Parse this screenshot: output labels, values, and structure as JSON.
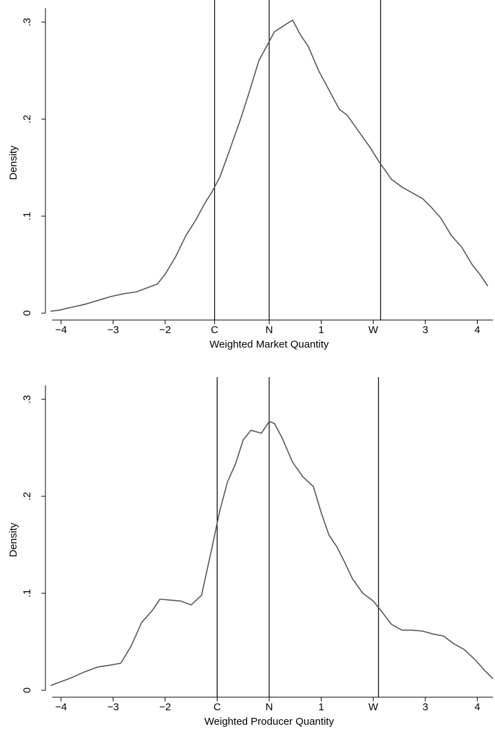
{
  "chart_data": [
    {
      "type": "line",
      "xlabel": "Weighted Market Quantity",
      "ylabel": "Density",
      "xlim": [
        -4.3,
        4.3
      ],
      "ylim": [
        0,
        0.31
      ],
      "x_ticks": [
        {
          "value": -4,
          "label": "−4"
        },
        {
          "value": -3,
          "label": "−3"
        },
        {
          "value": -2,
          "label": "−2"
        },
        {
          "value": -1.05,
          "label": "C"
        },
        {
          "value": 0,
          "label": "N"
        },
        {
          "value": 1,
          "label": "1"
        },
        {
          "value": 2,
          "label": "W"
        },
        {
          "value": 3,
          "label": "3"
        },
        {
          "value": 4,
          "label": "4"
        }
      ],
      "y_ticks": [
        {
          "value": 0,
          "label": "0"
        },
        {
          "value": 0.1,
          "label": ".1"
        },
        {
          "value": 0.2,
          "label": ".2"
        },
        {
          "value": 0.3,
          "label": ".3"
        }
      ],
      "reference_lines": [
        -1.05,
        0,
        2.14
      ],
      "series": [
        {
          "color": "#555555",
          "x": [
            -4.2,
            -4.05,
            -3.8,
            -3.55,
            -3.3,
            -3.05,
            -2.8,
            -2.55,
            -2.4,
            -2.15,
            -2.0,
            -1.8,
            -1.6,
            -1.4,
            -1.25,
            -1.1,
            -0.95,
            -0.8,
            -0.55,
            -0.4,
            -0.2,
            0.0,
            0.1,
            0.3,
            0.45,
            0.6,
            0.75,
            0.95,
            1.15,
            1.35,
            1.5,
            1.75,
            1.95,
            2.1,
            2.35,
            2.55,
            2.75,
            2.95,
            3.1,
            3.3,
            3.5,
            3.7,
            3.9,
            4.05,
            4.2
          ],
          "y": [
            0.002,
            0.003,
            0.006,
            0.009,
            0.013,
            0.017,
            0.02,
            0.022,
            0.025,
            0.03,
            0.04,
            0.058,
            0.08,
            0.097,
            0.112,
            0.125,
            0.14,
            0.162,
            0.2,
            0.225,
            0.26,
            0.28,
            0.29,
            0.297,
            0.302,
            0.287,
            0.275,
            0.25,
            0.23,
            0.21,
            0.204,
            0.185,
            0.17,
            0.157,
            0.138,
            0.13,
            0.124,
            0.118,
            0.11,
            0.098,
            0.08,
            0.068,
            0.05,
            0.04,
            0.028
          ]
        }
      ]
    },
    {
      "type": "line",
      "xlabel": "Weighted Producer Quantity",
      "ylabel": "Density",
      "xlim": [
        -4.3,
        4.3
      ],
      "ylim": [
        0,
        0.31
      ],
      "x_ticks": [
        {
          "value": -4,
          "label": "−4"
        },
        {
          "value": -3,
          "label": "−3"
        },
        {
          "value": -2,
          "label": "−2"
        },
        {
          "value": -1.0,
          "label": "C"
        },
        {
          "value": 0,
          "label": "N"
        },
        {
          "value": 1,
          "label": "1"
        },
        {
          "value": 2,
          "label": "W"
        },
        {
          "value": 3,
          "label": "3"
        },
        {
          "value": 4,
          "label": "4"
        }
      ],
      "y_ticks": [
        {
          "value": 0,
          "label": "0"
        },
        {
          "value": 0.1,
          "label": ".1"
        },
        {
          "value": 0.2,
          "label": ".2"
        },
        {
          "value": 0.3,
          "label": ".3"
        }
      ],
      "reference_lines": [
        -1.0,
        0,
        2.1
      ],
      "series": [
        {
          "color": "#555555",
          "x": [
            -4.2,
            -4.05,
            -3.8,
            -3.55,
            -3.3,
            -3.05,
            -2.85,
            -2.65,
            -2.45,
            -2.25,
            -2.1,
            -1.9,
            -1.7,
            -1.5,
            -1.3,
            -1.1,
            -0.95,
            -0.8,
            -0.65,
            -0.5,
            -0.35,
            -0.15,
            0.0,
            0.1,
            0.25,
            0.45,
            0.65,
            0.85,
            1.0,
            1.15,
            1.3,
            1.45,
            1.6,
            1.8,
            2.0,
            2.15,
            2.35,
            2.55,
            2.75,
            2.95,
            3.15,
            3.35,
            3.55,
            3.75,
            3.95,
            4.15,
            4.3
          ],
          "y": [
            0.005,
            0.008,
            0.013,
            0.019,
            0.024,
            0.026,
            0.028,
            0.046,
            0.07,
            0.082,
            0.094,
            0.093,
            0.092,
            0.088,
            0.098,
            0.147,
            0.185,
            0.215,
            0.233,
            0.258,
            0.268,
            0.265,
            0.277,
            0.275,
            0.26,
            0.235,
            0.22,
            0.21,
            0.183,
            0.16,
            0.148,
            0.132,
            0.115,
            0.1,
            0.092,
            0.082,
            0.068,
            0.062,
            0.062,
            0.061,
            0.058,
            0.056,
            0.048,
            0.042,
            0.032,
            0.02,
            0.012
          ]
        }
      ]
    }
  ]
}
